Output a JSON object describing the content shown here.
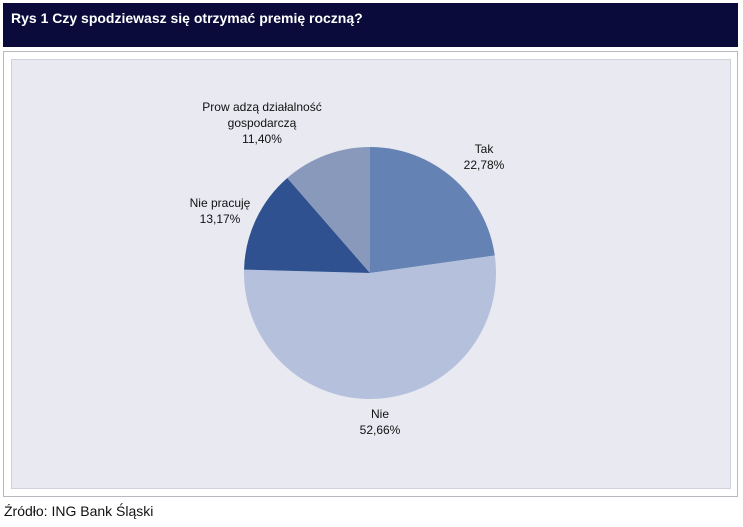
{
  "header": {
    "title": "Rys 1 Czy spodziewasz się otrzymać premię roczną?"
  },
  "chart_data": {
    "type": "pie",
    "title": "Rys 1 Czy spodziewasz się otrzymać premię roczną?",
    "slices": [
      {
        "label_lines": [
          "Tak"
        ],
        "value": 22.78,
        "value_label": "22,78%",
        "color": "#6582b4"
      },
      {
        "label_lines": [
          "Nie"
        ],
        "value": 52.66,
        "value_label": "52,66%",
        "color": "#b5c1dc"
      },
      {
        "label_lines": [
          "Nie pracuję"
        ],
        "value": 13.17,
        "value_label": "13,17%",
        "color": "#2f5190"
      },
      {
        "label_lines": [
          "Prow adzą działalność",
          "gospodarczą"
        ],
        "value": 11.4,
        "value_label": "11,40%",
        "color": "#8899bc"
      }
    ],
    "start_angle_deg": 0,
    "direction": "clockwise",
    "legend": "none"
  },
  "footer": {
    "source": "Źródło: ING Bank Śląski"
  }
}
